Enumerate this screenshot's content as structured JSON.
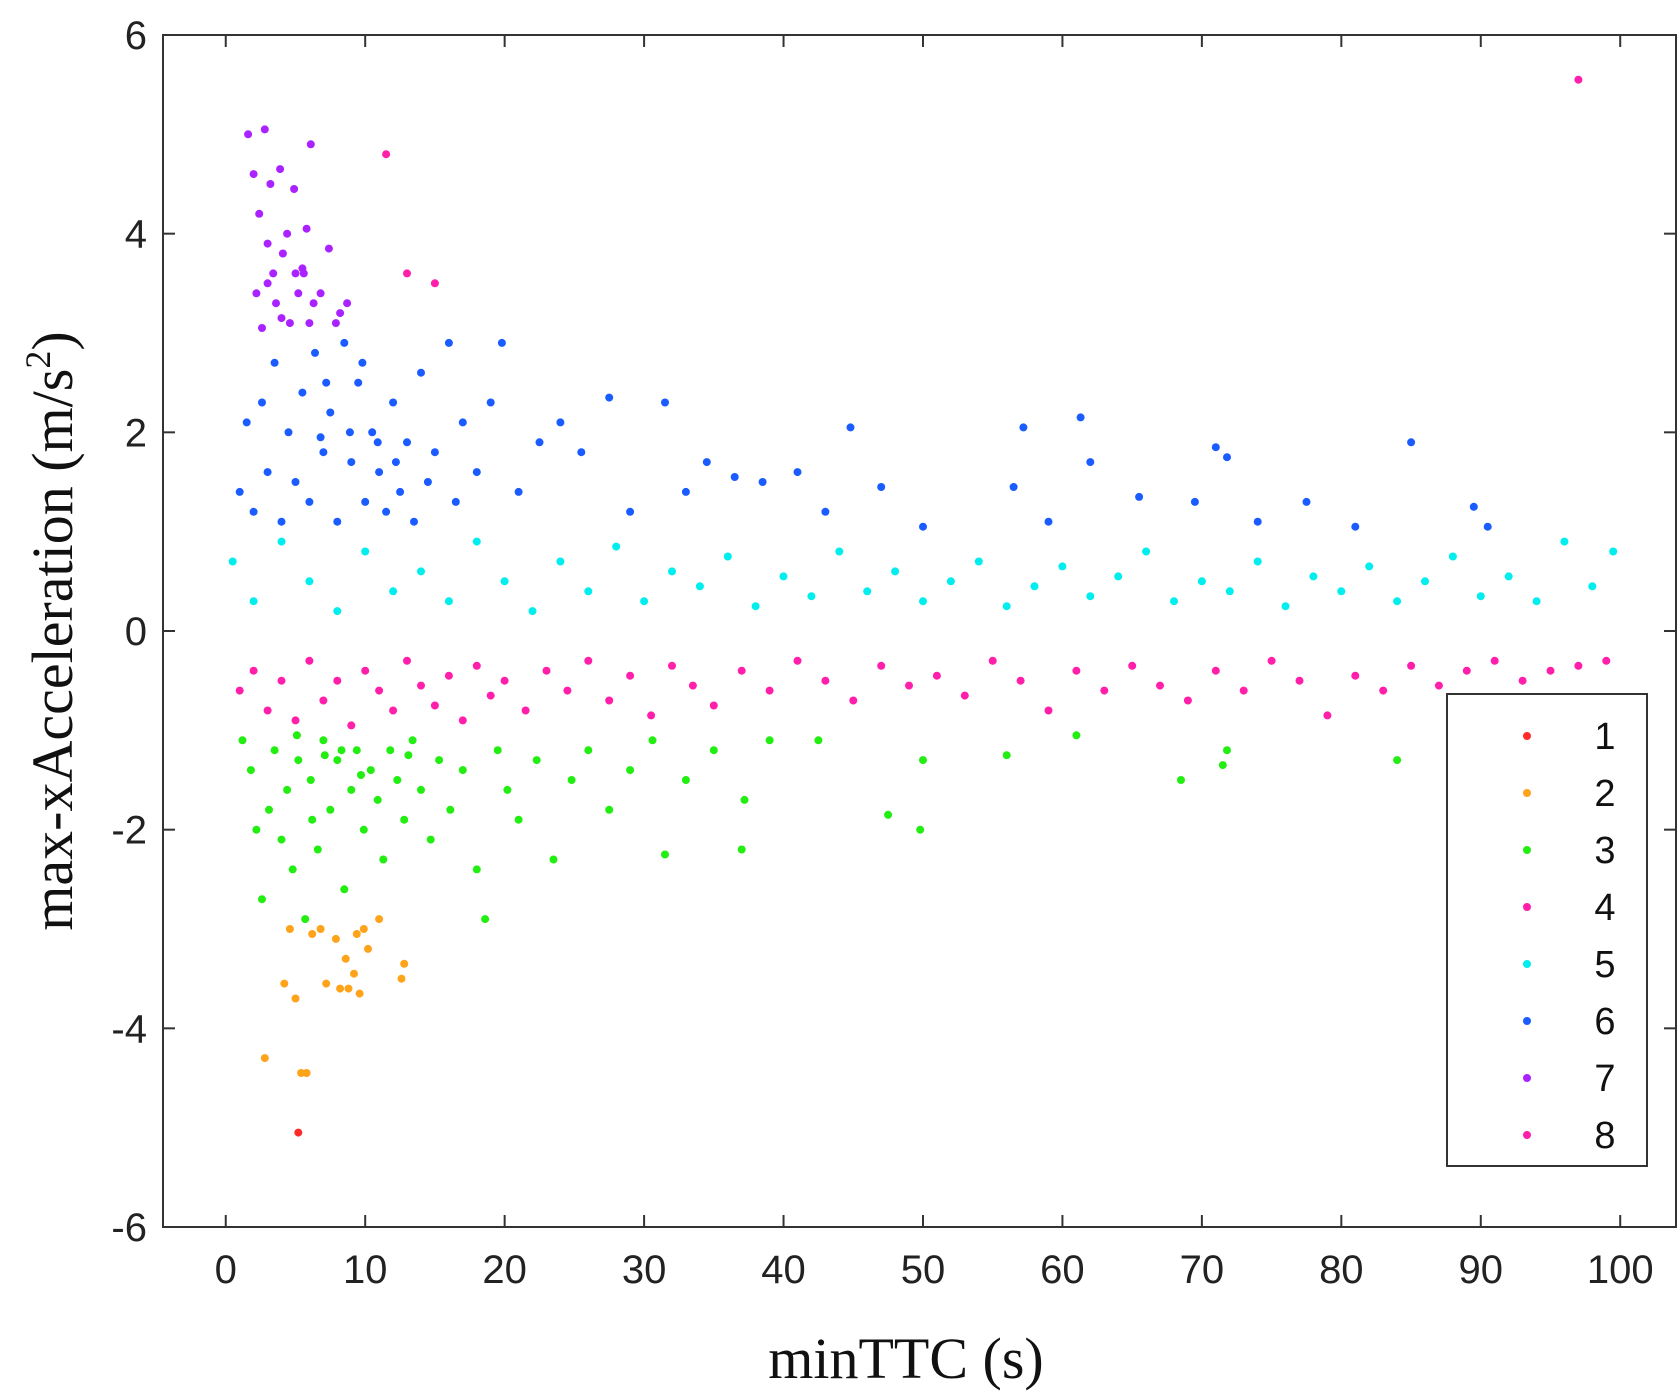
{
  "chart_data": {
    "type": "scatter",
    "title": "",
    "xlabel": "minTTC (s)",
    "ylabel_main": "max-xAcceleration (m/s",
    "ylabel_sup": "2",
    "ylabel_close": ")",
    "xlim": [
      -4.5,
      104
    ],
    "ylim": [
      -6,
      6
    ],
    "xticks": [
      0,
      10,
      20,
      30,
      40,
      50,
      60,
      70,
      80,
      90,
      100
    ],
    "yticks": [
      -6,
      -4,
      -2,
      0,
      2,
      4,
      6
    ],
    "grid": false,
    "legend_position": "bottom-right",
    "series": [
      {
        "name": "1",
        "color": "#ff2a2a",
        "points": [
          [
            5.2,
            -5.05
          ]
        ]
      },
      {
        "name": "2",
        "color": "#ffa31a",
        "points": [
          [
            2.8,
            -4.3
          ],
          [
            4.6,
            -3.0
          ],
          [
            4.2,
            -3.55
          ],
          [
            5.0,
            -3.7
          ],
          [
            5.4,
            -4.45
          ],
          [
            5.8,
            -4.45
          ],
          [
            6.2,
            -3.05
          ],
          [
            7.2,
            -3.55
          ],
          [
            8.2,
            -3.6
          ],
          [
            8.6,
            -3.3
          ],
          [
            9.2,
            -3.45
          ],
          [
            9.6,
            -3.65
          ],
          [
            9.4,
            -3.05
          ],
          [
            10.2,
            -3.2
          ],
          [
            12.8,
            -3.35
          ],
          [
            12.6,
            -3.5
          ],
          [
            8.8,
            -3.6
          ],
          [
            9.9,
            -3.0
          ],
          [
            7.9,
            -3.1
          ],
          [
            6.8,
            -3.0
          ],
          [
            11.0,
            -2.9
          ]
        ]
      },
      {
        "name": "3",
        "color": "#22ee11",
        "points": [
          [
            1.2,
            -1.1
          ],
          [
            1.8,
            -1.4
          ],
          [
            2.2,
            -2.0
          ],
          [
            2.6,
            -2.7
          ],
          [
            3.1,
            -1.8
          ],
          [
            3.5,
            -1.2
          ],
          [
            4.0,
            -2.1
          ],
          [
            4.4,
            -1.6
          ],
          [
            4.8,
            -2.4
          ],
          [
            5.2,
            -1.3
          ],
          [
            5.7,
            -2.9
          ],
          [
            6.1,
            -1.5
          ],
          [
            6.6,
            -2.2
          ],
          [
            7.0,
            -1.1
          ],
          [
            7.5,
            -1.8
          ],
          [
            8.0,
            -1.3
          ],
          [
            8.5,
            -2.6
          ],
          [
            9.0,
            -1.6
          ],
          [
            9.4,
            -1.2
          ],
          [
            9.9,
            -2.0
          ],
          [
            10.4,
            -1.4
          ],
          [
            10.9,
            -1.7
          ],
          [
            11.3,
            -2.3
          ],
          [
            11.8,
            -1.2
          ],
          [
            12.3,
            -1.5
          ],
          [
            12.8,
            -1.9
          ],
          [
            13.4,
            -1.1
          ],
          [
            14.0,
            -1.6
          ],
          [
            14.7,
            -2.1
          ],
          [
            15.3,
            -1.3
          ],
          [
            16.1,
            -1.8
          ],
          [
            17.0,
            -1.4
          ],
          [
            18.0,
            -2.4
          ],
          [
            18.6,
            -2.9
          ],
          [
            19.5,
            -1.2
          ],
          [
            20.2,
            -1.6
          ],
          [
            21.0,
            -1.9
          ],
          [
            22.3,
            -1.3
          ],
          [
            23.5,
            -2.3
          ],
          [
            24.8,
            -1.5
          ],
          [
            26.0,
            -1.2
          ],
          [
            27.5,
            -1.8
          ],
          [
            29.0,
            -1.4
          ],
          [
            30.6,
            -1.1
          ],
          [
            31.5,
            -2.25
          ],
          [
            33.0,
            -1.5
          ],
          [
            35.0,
            -1.2
          ],
          [
            37.0,
            -2.2
          ],
          [
            37.2,
            -1.7
          ],
          [
            39.0,
            -1.1
          ],
          [
            42.5,
            -1.1
          ],
          [
            47.5,
            -1.85
          ],
          [
            49.8,
            -2.0
          ],
          [
            50.0,
            -1.3
          ],
          [
            56.0,
            -1.25
          ],
          [
            61.0,
            -1.05
          ],
          [
            68.5,
            -1.5
          ],
          [
            71.5,
            -1.35
          ],
          [
            71.8,
            -1.2
          ],
          [
            84.0,
            -1.3
          ],
          [
            8.3,
            -1.2
          ],
          [
            7.1,
            -1.25
          ],
          [
            9.7,
            -1.45
          ],
          [
            6.2,
            -1.9
          ],
          [
            5.1,
            -1.05
          ],
          [
            13.1,
            -1.25
          ]
        ]
      },
      {
        "name": "4",
        "color": "#ff1faa",
        "points": [
          [
            1.0,
            -0.6
          ],
          [
            2.0,
            -0.4
          ],
          [
            3.0,
            -0.8
          ],
          [
            4.0,
            -0.5
          ],
          [
            5.0,
            -0.9
          ],
          [
            6.0,
            -0.3
          ],
          [
            7.0,
            -0.7
          ],
          [
            8.0,
            -0.5
          ],
          [
            9.0,
            -0.95
          ],
          [
            10.0,
            -0.4
          ],
          [
            11.0,
            -0.6
          ],
          [
            12.0,
            -0.8
          ],
          [
            13.0,
            -0.3
          ],
          [
            14.0,
            -0.55
          ],
          [
            15.0,
            -0.75
          ],
          [
            16.0,
            -0.45
          ],
          [
            17.0,
            -0.9
          ],
          [
            18.0,
            -0.35
          ],
          [
            19.0,
            -0.65
          ],
          [
            20.0,
            -0.5
          ],
          [
            21.5,
            -0.8
          ],
          [
            23.0,
            -0.4
          ],
          [
            24.5,
            -0.6
          ],
          [
            26.0,
            -0.3
          ],
          [
            27.5,
            -0.7
          ],
          [
            29.0,
            -0.45
          ],
          [
            30.5,
            -0.85
          ],
          [
            32.0,
            -0.35
          ],
          [
            33.5,
            -0.55
          ],
          [
            35.0,
            -0.75
          ],
          [
            37.0,
            -0.4
          ],
          [
            39.0,
            -0.6
          ],
          [
            41.0,
            -0.3
          ],
          [
            43.0,
            -0.5
          ],
          [
            45.0,
            -0.7
          ],
          [
            47.0,
            -0.35
          ],
          [
            49.0,
            -0.55
          ],
          [
            51.0,
            -0.45
          ],
          [
            53.0,
            -0.65
          ],
          [
            55.0,
            -0.3
          ],
          [
            57.0,
            -0.5
          ],
          [
            59.0,
            -0.8
          ],
          [
            61.0,
            -0.4
          ],
          [
            63.0,
            -0.6
          ],
          [
            65.0,
            -0.35
          ],
          [
            67.0,
            -0.55
          ],
          [
            69.0,
            -0.7
          ],
          [
            71.0,
            -0.4
          ],
          [
            73.0,
            -0.6
          ],
          [
            75.0,
            -0.3
          ],
          [
            77.0,
            -0.5
          ],
          [
            79.0,
            -0.85
          ],
          [
            81.0,
            -0.45
          ],
          [
            83.0,
            -0.6
          ],
          [
            85.0,
            -0.35
          ],
          [
            87.0,
            -0.55
          ],
          [
            89.0,
            -0.4
          ],
          [
            91.0,
            -0.3
          ],
          [
            93.0,
            -0.5
          ],
          [
            95.0,
            -0.4
          ],
          [
            97.0,
            -0.35
          ],
          [
            99.0,
            -0.3
          ]
        ]
      },
      {
        "name": "5",
        "color": "#00eeee",
        "points": [
          [
            0.5,
            0.7
          ],
          [
            2.0,
            0.3
          ],
          [
            4.0,
            0.9
          ],
          [
            6.0,
            0.5
          ],
          [
            8.0,
            0.2
          ],
          [
            10.0,
            0.8
          ],
          [
            12.0,
            0.4
          ],
          [
            14.0,
            0.6
          ],
          [
            16.0,
            0.3
          ],
          [
            18.0,
            0.9
          ],
          [
            20.0,
            0.5
          ],
          [
            22.0,
            0.2
          ],
          [
            24.0,
            0.7
          ],
          [
            26.0,
            0.4
          ],
          [
            28.0,
            0.85
          ],
          [
            30.0,
            0.3
          ],
          [
            32.0,
            0.6
          ],
          [
            34.0,
            0.45
          ],
          [
            36.0,
            0.75
          ],
          [
            38.0,
            0.25
          ],
          [
            40.0,
            0.55
          ],
          [
            42.0,
            0.35
          ],
          [
            44.0,
            0.8
          ],
          [
            46.0,
            0.4
          ],
          [
            48.0,
            0.6
          ],
          [
            50.0,
            0.3
          ],
          [
            52.0,
            0.5
          ],
          [
            54.0,
            0.7
          ],
          [
            56.0,
            0.25
          ],
          [
            58.0,
            0.45
          ],
          [
            60.0,
            0.65
          ],
          [
            62.0,
            0.35
          ],
          [
            64.0,
            0.55
          ],
          [
            66.0,
            0.8
          ],
          [
            68.0,
            0.3
          ],
          [
            70.0,
            0.5
          ],
          [
            72.0,
            0.4
          ],
          [
            74.0,
            0.7
          ],
          [
            76.0,
            0.25
          ],
          [
            78.0,
            0.55
          ],
          [
            80.0,
            0.4
          ],
          [
            82.0,
            0.65
          ],
          [
            84.0,
            0.3
          ],
          [
            86.0,
            0.5
          ],
          [
            88.0,
            0.75
          ],
          [
            90.0,
            0.35
          ],
          [
            92.0,
            0.55
          ],
          [
            94.0,
            0.3
          ],
          [
            96.0,
            0.9
          ],
          [
            98.0,
            0.45
          ],
          [
            99.5,
            0.8
          ]
        ]
      },
      {
        "name": "6",
        "color": "#1a5cff",
        "points": [
          [
            1.0,
            1.4
          ],
          [
            1.5,
            2.1
          ],
          [
            2.0,
            1.2
          ],
          [
            2.6,
            2.3
          ],
          [
            3.0,
            1.6
          ],
          [
            3.5,
            2.7
          ],
          [
            4.0,
            1.1
          ],
          [
            4.5,
            2.0
          ],
          [
            5.0,
            1.5
          ],
          [
            5.5,
            2.4
          ],
          [
            6.0,
            1.3
          ],
          [
            6.4,
            2.8
          ],
          [
            7.0,
            1.8
          ],
          [
            7.5,
            2.2
          ],
          [
            8.0,
            1.1
          ],
          [
            8.5,
            2.9
          ],
          [
            9.0,
            1.7
          ],
          [
            9.5,
            2.5
          ],
          [
            10.0,
            1.3
          ],
          [
            10.5,
            2.0
          ],
          [
            11.0,
            1.6
          ],
          [
            11.5,
            1.2
          ],
          [
            12.0,
            2.3
          ],
          [
            12.5,
            1.4
          ],
          [
            13.0,
            1.9
          ],
          [
            13.5,
            1.1
          ],
          [
            14.0,
            2.6
          ],
          [
            14.5,
            1.5
          ],
          [
            15.0,
            1.8
          ],
          [
            16.0,
            2.9
          ],
          [
            16.5,
            1.3
          ],
          [
            17.0,
            2.1
          ],
          [
            18.0,
            1.6
          ],
          [
            19.0,
            2.3
          ],
          [
            19.8,
            2.9
          ],
          [
            21.0,
            1.4
          ],
          [
            22.5,
            1.9
          ],
          [
            24.0,
            2.1
          ],
          [
            25.5,
            1.8
          ],
          [
            27.5,
            2.35
          ],
          [
            29.0,
            1.2
          ],
          [
            31.5,
            2.3
          ],
          [
            33.0,
            1.4
          ],
          [
            34.5,
            1.7
          ],
          [
            36.5,
            1.55
          ],
          [
            38.5,
            1.5
          ],
          [
            41.0,
            1.6
          ],
          [
            43.0,
            1.2
          ],
          [
            44.8,
            2.05
          ],
          [
            47.0,
            1.45
          ],
          [
            50.0,
            1.05
          ],
          [
            56.5,
            1.45
          ],
          [
            57.2,
            2.05
          ],
          [
            59.0,
            1.1
          ],
          [
            61.3,
            2.15
          ],
          [
            62.0,
            1.7
          ],
          [
            65.5,
            1.35
          ],
          [
            69.5,
            1.3
          ],
          [
            71.0,
            1.85
          ],
          [
            71.8,
            1.75
          ],
          [
            74.0,
            1.1
          ],
          [
            77.5,
            1.3
          ],
          [
            81.0,
            1.05
          ],
          [
            85.0,
            1.9
          ],
          [
            89.5,
            1.25
          ],
          [
            90.5,
            1.05
          ],
          [
            7.2,
            2.5
          ],
          [
            9.8,
            2.7
          ],
          [
            6.8,
            1.95
          ],
          [
            8.9,
            2.0
          ],
          [
            10.9,
            1.9
          ],
          [
            12.2,
            1.7
          ]
        ]
      },
      {
        "name": "7",
        "color": "#aa22ff",
        "points": [
          [
            1.6,
            5.0
          ],
          [
            2.0,
            4.6
          ],
          [
            2.4,
            4.2
          ],
          [
            2.8,
            5.05
          ],
          [
            3.0,
            3.9
          ],
          [
            3.2,
            4.5
          ],
          [
            3.4,
            3.6
          ],
          [
            3.6,
            3.3
          ],
          [
            3.9,
            4.65
          ],
          [
            4.1,
            3.8
          ],
          [
            4.4,
            4.0
          ],
          [
            4.6,
            3.1
          ],
          [
            4.9,
            4.45
          ],
          [
            5.2,
            3.4
          ],
          [
            5.5,
            3.65
          ],
          [
            5.8,
            4.05
          ],
          [
            6.0,
            3.1
          ],
          [
            6.1,
            4.9
          ],
          [
            6.8,
            3.4
          ],
          [
            7.4,
            3.85
          ],
          [
            8.2,
            3.2
          ],
          [
            8.7,
            3.3
          ],
          [
            2.6,
            3.05
          ],
          [
            4.0,
            3.15
          ],
          [
            5.6,
            3.6
          ],
          [
            7.9,
            3.1
          ],
          [
            3.0,
            3.5
          ],
          [
            5.0,
            3.6
          ],
          [
            6.3,
            3.3
          ],
          [
            2.2,
            3.4
          ]
        ]
      },
      {
        "name": "8",
        "color": "#ff1faa",
        "points": [
          [
            11.5,
            4.8
          ],
          [
            13.0,
            3.6
          ],
          [
            15.0,
            3.5
          ],
          [
            97.0,
            5.55
          ]
        ]
      }
    ]
  }
}
